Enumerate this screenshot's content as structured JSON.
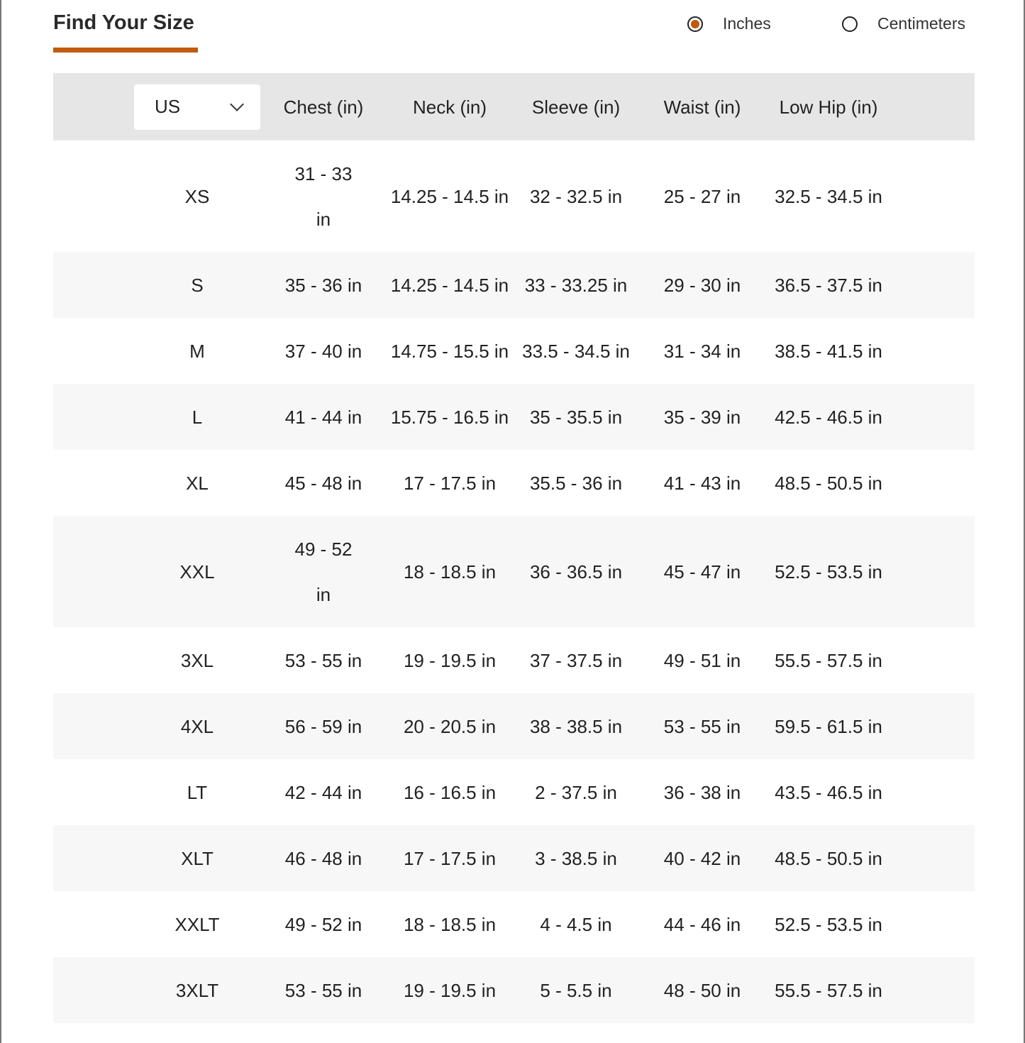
{
  "title": "Find Your Size",
  "units": {
    "options": [
      "Inches",
      "Centimeters"
    ],
    "selected": "Inches"
  },
  "accent": "#c05a0c",
  "table": {
    "region": "US",
    "headers": [
      "Chest (in)",
      "Neck (in)",
      "Sleeve (in)",
      "Waist (in)",
      "Low Hip (in)"
    ],
    "rows": [
      [
        "XS",
        "31 - 33 in",
        "14.25 - 14.5 in",
        "32 - 32.5 in",
        "25 - 27 in",
        "32.5 - 34.5 in"
      ],
      [
        "S",
        "35 - 36 in",
        "14.25 - 14.5 in",
        "33 - 33.25 in",
        "29 - 30 in",
        "36.5 - 37.5 in"
      ],
      [
        "M",
        "37 - 40 in",
        "14.75 - 15.5 in",
        "33.5 - 34.5 in",
        "31 - 34 in",
        "38.5 - 41.5 in"
      ],
      [
        "L",
        "41 - 44 in",
        "15.75 - 16.5 in",
        "35 - 35.5 in",
        "35 - 39 in",
        "42.5 - 46.5 in"
      ],
      [
        "XL",
        "45 - 48 in",
        "17 - 17.5 in",
        "35.5 - 36 in",
        "41 - 43 in",
        "48.5 - 50.5 in"
      ],
      [
        "XXL",
        "49 - 52 in",
        "18 - 18.5 in",
        "36 - 36.5 in",
        "45 - 47 in",
        "52.5 - 53.5 in"
      ],
      [
        "3XL",
        "53 - 55 in",
        "19 - 19.5 in",
        "37 - 37.5 in",
        "49 - 51 in",
        "55.5 - 57.5 in"
      ],
      [
        "4XL",
        "56 - 59 in",
        "20 - 20.5 in",
        "38 - 38.5 in",
        "53 - 55 in",
        "59.5 - 61.5 in"
      ],
      [
        "LT",
        "42 - 44 in",
        "16 - 16.5 in",
        "2 - 37.5 in",
        "36 - 38 in",
        "43.5 - 46.5 in"
      ],
      [
        "XLT",
        "46 - 48 in",
        "17 - 17.5 in",
        "3 - 38.5 in",
        "40 - 42 in",
        "48.5 - 50.5 in"
      ],
      [
        "XXLT",
        "49 - 52 in",
        "18 - 18.5 in",
        "4 - 4.5 in",
        "44 - 46 in",
        "52.5 - 53.5 in"
      ],
      [
        "3XLT",
        "53 - 55 in",
        "19 - 19.5 in",
        "5 - 5.5 in",
        "48 - 50 in",
        "55.5 - 57.5 in"
      ]
    ]
  }
}
